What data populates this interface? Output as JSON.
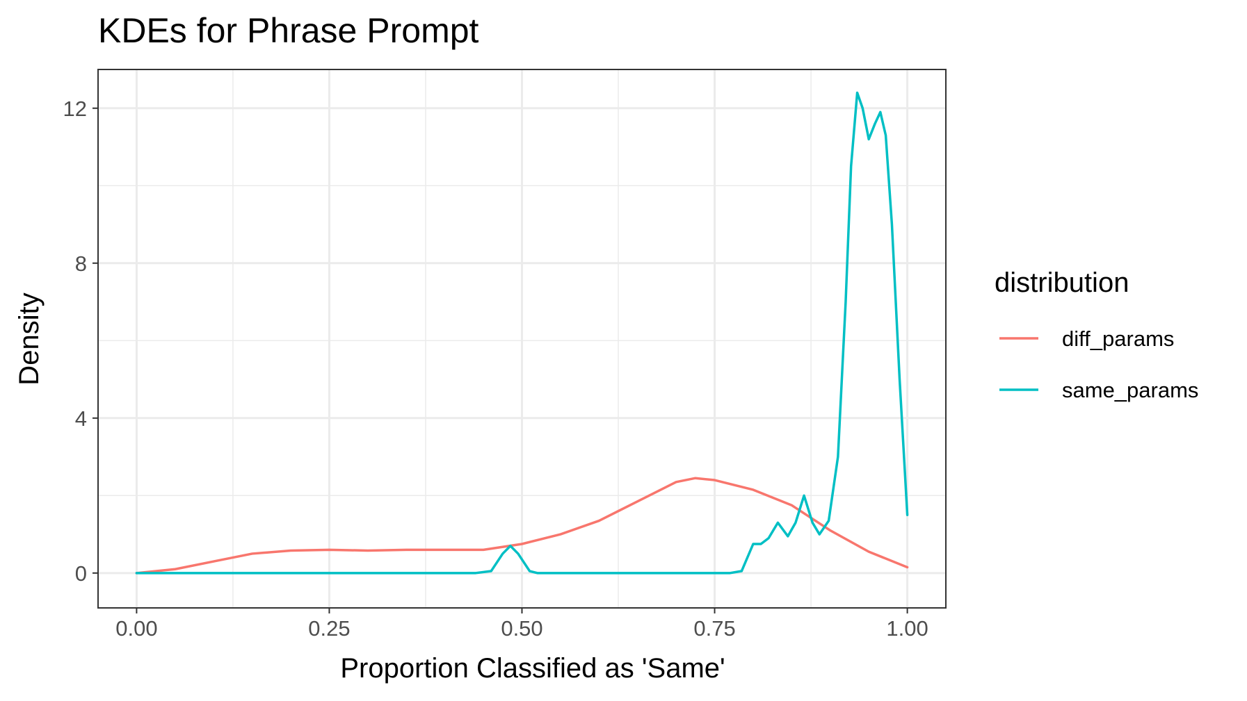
{
  "chart_data": {
    "type": "line",
    "title": "KDEs for Phrase Prompt",
    "xlabel": "Proportion Classified as 'Same'",
    "ylabel": "Density",
    "xlim": [
      -0.05,
      1.05
    ],
    "ylim": [
      -0.9,
      13.0
    ],
    "x_ticks": [
      0.0,
      0.25,
      0.5,
      0.75,
      1.0
    ],
    "x_tick_labels": [
      "0.00",
      "0.25",
      "0.50",
      "0.75",
      "1.00"
    ],
    "y_ticks": [
      0,
      4,
      8,
      12
    ],
    "y_tick_labels": [
      "0",
      "4",
      "8",
      "12"
    ],
    "grid": true,
    "legend": {
      "title": "distribution",
      "placement": "right"
    },
    "series": [
      {
        "name": "diff_params",
        "color": "#F8766D",
        "points": [
          [
            0.0,
            0.0
          ],
          [
            0.05,
            0.1
          ],
          [
            0.1,
            0.3
          ],
          [
            0.15,
            0.5
          ],
          [
            0.2,
            0.58
          ],
          [
            0.25,
            0.6
          ],
          [
            0.3,
            0.58
          ],
          [
            0.35,
            0.6
          ],
          [
            0.4,
            0.6
          ],
          [
            0.45,
            0.6
          ],
          [
            0.5,
            0.75
          ],
          [
            0.55,
            1.0
          ],
          [
            0.6,
            1.35
          ],
          [
            0.65,
            1.85
          ],
          [
            0.7,
            2.35
          ],
          [
            0.725,
            2.45
          ],
          [
            0.75,
            2.4
          ],
          [
            0.8,
            2.15
          ],
          [
            0.85,
            1.75
          ],
          [
            0.9,
            1.1
          ],
          [
            0.95,
            0.55
          ],
          [
            1.0,
            0.15
          ]
        ]
      },
      {
        "name": "same_params",
        "color": "#00BFC4",
        "points": [
          [
            0.0,
            0.0
          ],
          [
            0.44,
            0.0
          ],
          [
            0.46,
            0.05
          ],
          [
            0.475,
            0.5
          ],
          [
            0.485,
            0.7
          ],
          [
            0.495,
            0.5
          ],
          [
            0.51,
            0.05
          ],
          [
            0.52,
            0.0
          ],
          [
            0.77,
            0.0
          ],
          [
            0.785,
            0.05
          ],
          [
            0.8,
            0.75
          ],
          [
            0.81,
            0.75
          ],
          [
            0.82,
            0.9
          ],
          [
            0.832,
            1.3
          ],
          [
            0.845,
            0.95
          ],
          [
            0.855,
            1.3
          ],
          [
            0.866,
            2.0
          ],
          [
            0.877,
            1.3
          ],
          [
            0.886,
            1.0
          ],
          [
            0.898,
            1.35
          ],
          [
            0.91,
            3.0
          ],
          [
            0.92,
            7.0
          ],
          [
            0.927,
            10.5
          ],
          [
            0.935,
            12.4
          ],
          [
            0.942,
            12.0
          ],
          [
            0.95,
            11.2
          ],
          [
            0.958,
            11.6
          ],
          [
            0.965,
            11.9
          ],
          [
            0.972,
            11.3
          ],
          [
            0.98,
            9.0
          ],
          [
            0.99,
            5.0
          ],
          [
            1.0,
            1.5
          ]
        ]
      }
    ]
  }
}
